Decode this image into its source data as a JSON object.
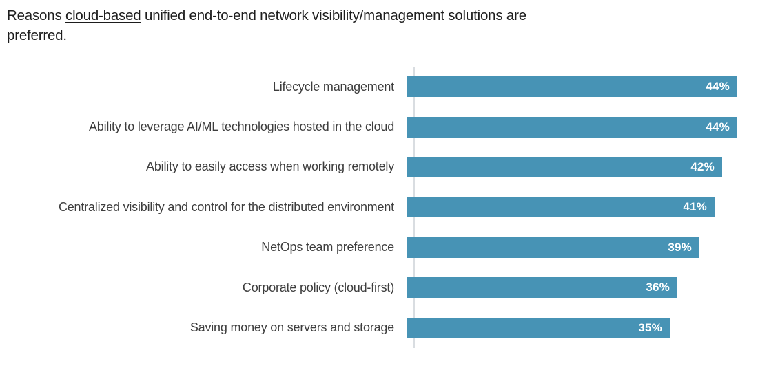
{
  "title": {
    "prefix": "Reasons ",
    "underlined": "cloud-based",
    "suffix": " unified end-to-end network visibility/management solutions are preferred."
  },
  "chart_data": {
    "type": "bar",
    "orientation": "horizontal",
    "title": "Reasons cloud-based unified end-to-end network visibility/management solutions are preferred.",
    "categories": [
      "Lifecycle management",
      "Ability to leverage AI/ML technologies hosted in the cloud",
      "Ability to easily access when working remotely",
      "Centralized visibility and control for the distributed environment",
      "NetOps team preference",
      "Corporate policy (cloud-first)",
      "Saving money on servers and storage"
    ],
    "values": [
      44,
      44,
      42,
      41,
      39,
      36,
      35
    ],
    "value_suffix": "%",
    "value_labels": [
      "44%",
      "44%",
      "42%",
      "41%",
      "39%",
      "36%",
      "35%"
    ],
    "xlim": [
      0,
      44
    ],
    "grid": false,
    "legend": false,
    "colors": {
      "bar": "#4793b5",
      "value_label": "#ffffff",
      "category_label": "#3d3d3d",
      "title_text": "#1d1d1d",
      "axis_line": "#d9dde1"
    }
  }
}
